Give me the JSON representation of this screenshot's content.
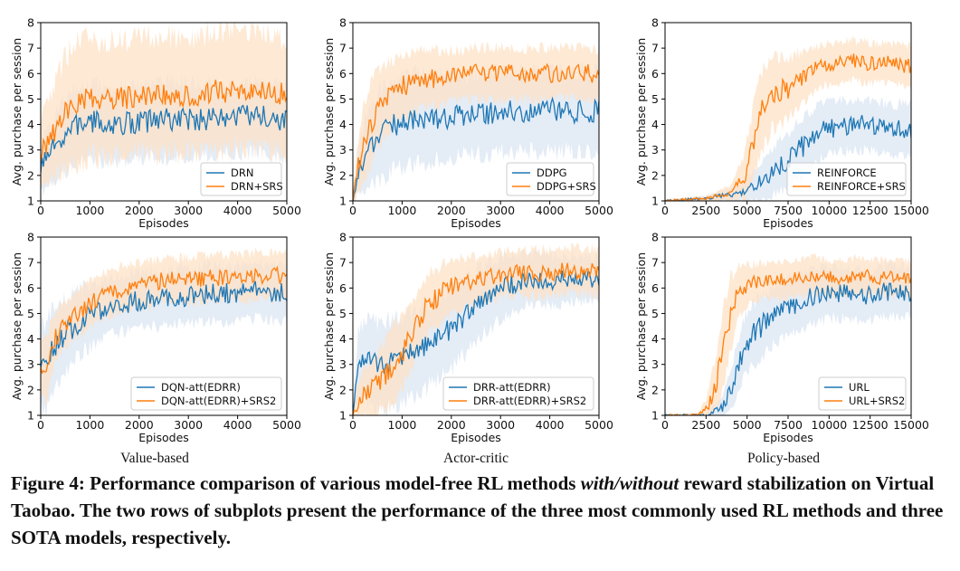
{
  "caption": {
    "prefix": "Figure 4: Performance comparison of various model-free RL methods ",
    "emphasis": "with/without",
    "suffix": " reward stabilization on Virtual Taobao. The two rows of subplots present the performance of the three most commonly used RL methods and three SOTA models, respectively."
  },
  "column_labels": [
    "Value-based",
    "Actor-critic",
    "Policy-based"
  ],
  "colors": {
    "blue": "#1f77b4",
    "orange": "#ff7f0e",
    "blue_band": "#dbe6f3",
    "orange_band": "#fde2c6"
  },
  "chart_data": [
    {
      "type": "line",
      "xlabel": "Episodes",
      "ylabel": "Avg. purchase per session",
      "xlim": [
        0,
        5000
      ],
      "ylim": [
        1,
        8
      ],
      "xticks": [
        0,
        1000,
        2000,
        3000,
        4000,
        5000
      ],
      "yticks": [
        1,
        2,
        3,
        4,
        5,
        6,
        7,
        8
      ],
      "legend": "lower-right",
      "series": [
        {
          "name": "DRN",
          "color": "#1f77b4",
          "x": [
            0,
            250,
            500,
            750,
            1000,
            1500,
            2000,
            2500,
            3000,
            3500,
            4000,
            4500,
            5000
          ],
          "y": [
            2.3,
            3.0,
            3.6,
            4.0,
            4.1,
            4.0,
            4.1,
            4.2,
            4.2,
            4.2,
            4.3,
            4.3,
            4.1
          ],
          "band": [
            1.0,
            1.2,
            1.4,
            1.5,
            1.5,
            1.4,
            1.4,
            1.5,
            1.5,
            1.4,
            1.4,
            1.4,
            1.4
          ]
        },
        {
          "name": "DRN+SRS",
          "color": "#ff7f0e",
          "x": [
            0,
            250,
            500,
            750,
            1000,
            1500,
            2000,
            2500,
            3000,
            3500,
            4000,
            4500,
            5000
          ],
          "y": [
            2.8,
            3.6,
            4.5,
            4.9,
            5.0,
            5.0,
            5.1,
            5.2,
            5.1,
            5.3,
            5.3,
            5.3,
            5.2
          ],
          "band": [
            1.3,
            1.8,
            2.2,
            2.3,
            2.3,
            2.2,
            2.2,
            2.3,
            2.2,
            2.3,
            2.3,
            2.3,
            2.2
          ]
        }
      ]
    },
    {
      "type": "line",
      "xlabel": "Episodes",
      "ylabel": "Avg. purchase per session",
      "xlim": [
        0,
        5000
      ],
      "ylim": [
        1,
        8
      ],
      "xticks": [
        0,
        1000,
        2000,
        3000,
        4000,
        5000
      ],
      "yticks": [
        1,
        2,
        3,
        4,
        5,
        6,
        7,
        8
      ],
      "legend": "lower-right",
      "series": [
        {
          "name": "DDPG",
          "color": "#1f77b4",
          "x": [
            0,
            100,
            250,
            500,
            750,
            1000,
            1500,
            2000,
            2500,
            3000,
            3500,
            4000,
            4500,
            5000
          ],
          "y": [
            1.0,
            2.0,
            2.9,
            3.5,
            3.9,
            4.1,
            4.2,
            4.3,
            4.4,
            4.5,
            4.5,
            4.6,
            4.5,
            4.5
          ],
          "band": [
            0.1,
            0.8,
            1.5,
            1.7,
            1.8,
            1.8,
            1.7,
            1.6,
            1.6,
            1.6,
            1.6,
            1.6,
            1.6,
            1.6
          ]
        },
        {
          "name": "DDPG+SRS",
          "color": "#ff7f0e",
          "x": [
            0,
            100,
            250,
            500,
            750,
            1000,
            1500,
            2000,
            2500,
            3000,
            3500,
            4000,
            4500,
            5000
          ],
          "y": [
            1.0,
            2.3,
            3.5,
            4.6,
            5.2,
            5.5,
            5.8,
            5.9,
            6.0,
            6.0,
            6.0,
            6.0,
            6.0,
            6.0
          ],
          "band": [
            0.1,
            1.0,
            1.5,
            1.5,
            1.3,
            1.2,
            1.1,
            1.0,
            1.0,
            1.0,
            1.0,
            1.0,
            1.0,
            1.0
          ]
        }
      ]
    },
    {
      "type": "line",
      "xlabel": "Episodes",
      "ylabel": "Avg. purchase per session",
      "xlim": [
        0,
        15000
      ],
      "ylim": [
        1,
        8
      ],
      "xticks": [
        0,
        2500,
        5000,
        7500,
        10000,
        12500,
        15000
      ],
      "yticks": [
        1,
        2,
        3,
        4,
        5,
        6,
        7,
        8
      ],
      "legend": "lower-right",
      "series": [
        {
          "name": "REINFORCE",
          "color": "#1f77b4",
          "x": [
            0,
            2500,
            4500,
            5500,
            6500,
            7500,
            8500,
            9500,
            10500,
            11500,
            12500,
            13500,
            15000
          ],
          "y": [
            1.0,
            1.1,
            1.3,
            1.6,
            2.1,
            2.6,
            3.2,
            3.7,
            3.9,
            4.0,
            4.0,
            3.8,
            3.8
          ],
          "band": [
            0.05,
            0.1,
            0.3,
            0.6,
            0.9,
            1.1,
            1.2,
            1.1,
            1.0,
            1.0,
            1.0,
            1.0,
            1.0
          ]
        },
        {
          "name": "REINFORCE+SRS",
          "color": "#ff7f0e",
          "x": [
            0,
            2500,
            4000,
            4800,
            5300,
            5800,
            6500,
            7500,
            8500,
            9500,
            10500,
            11500,
            12500,
            13500,
            15000
          ],
          "y": [
            1.0,
            1.1,
            1.3,
            1.9,
            3.0,
            4.4,
            5.2,
            5.4,
            5.9,
            6.3,
            6.4,
            6.5,
            6.4,
            6.4,
            6.3
          ],
          "band": [
            0.05,
            0.1,
            0.3,
            0.8,
            1.4,
            1.6,
            1.4,
            1.2,
            1.0,
            0.8,
            0.8,
            0.8,
            0.8,
            0.8,
            0.8
          ]
        }
      ]
    },
    {
      "type": "line",
      "xlabel": "Episodes",
      "ylabel": "Avg. purchase per session",
      "xlim": [
        0,
        5000
      ],
      "ylim": [
        1,
        8
      ],
      "xticks": [
        0,
        1000,
        2000,
        3000,
        4000,
        5000
      ],
      "yticks": [
        1,
        2,
        3,
        4,
        5,
        6,
        7,
        8
      ],
      "legend": "lower-right",
      "series": [
        {
          "name": "DQN-att(EDRR)",
          "color": "#1f77b4",
          "x": [
            0,
            100,
            250,
            500,
            750,
            1000,
            1500,
            2000,
            2500,
            3000,
            3500,
            4000,
            4500,
            5000
          ],
          "y": [
            3.0,
            2.9,
            3.6,
            4.2,
            4.6,
            4.9,
            5.3,
            5.5,
            5.6,
            5.7,
            5.8,
            5.8,
            5.9,
            5.8
          ],
          "band": [
            1.5,
            1.8,
            1.6,
            1.4,
            1.3,
            1.2,
            1.1,
            1.1,
            1.1,
            1.1,
            1.1,
            1.1,
            1.1,
            1.1
          ]
        },
        {
          "name": "DQN-att(EDRR)+SRS2",
          "color": "#ff7f0e",
          "x": [
            0,
            100,
            250,
            500,
            750,
            1000,
            1500,
            2000,
            2500,
            3000,
            3500,
            4000,
            4500,
            5000
          ],
          "y": [
            3.0,
            2.7,
            3.9,
            4.6,
            5.0,
            5.4,
            5.9,
            6.1,
            6.3,
            6.3,
            6.4,
            6.4,
            6.5,
            6.5
          ],
          "band": [
            1.0,
            1.2,
            1.0,
            0.9,
            0.9,
            0.9,
            0.9,
            0.9,
            0.9,
            0.9,
            0.9,
            0.9,
            0.9,
            0.9
          ]
        }
      ]
    },
    {
      "type": "line",
      "xlabel": "Episodes",
      "ylabel": "Avg. purchase per session",
      "xlim": [
        0,
        5000
      ],
      "ylim": [
        1,
        8
      ],
      "xticks": [
        0,
        1000,
        2000,
        3000,
        4000,
        5000
      ],
      "yticks": [
        1,
        2,
        3,
        4,
        5,
        6,
        7,
        8
      ],
      "legend": "lower-right",
      "series": [
        {
          "name": "DRR-att(EDRR)",
          "color": "#1f77b4",
          "x": [
            0,
            100,
            250,
            500,
            750,
            1000,
            1500,
            2000,
            2500,
            3000,
            3500,
            4000,
            4500,
            5000
          ],
          "y": [
            1.0,
            3.0,
            3.1,
            3.0,
            3.0,
            3.2,
            3.7,
            4.4,
            5.3,
            6.0,
            6.3,
            6.3,
            6.4,
            6.3
          ],
          "band": [
            0.1,
            1.3,
            1.6,
            1.7,
            1.7,
            1.7,
            1.6,
            1.6,
            1.4,
            1.2,
            1.0,
            1.0,
            0.9,
            0.9
          ]
        },
        {
          "name": "DRR-att(EDRR)+SRS2",
          "color": "#ff7f0e",
          "x": [
            0,
            100,
            250,
            500,
            750,
            1000,
            1250,
            1500,
            2000,
            2500,
            3000,
            3500,
            4000,
            4500,
            5000
          ],
          "y": [
            1.0,
            1.5,
            1.9,
            2.2,
            2.8,
            3.5,
            4.3,
            5.3,
            6.1,
            6.3,
            6.5,
            6.6,
            6.6,
            6.7,
            6.6
          ],
          "band": [
            0.1,
            0.8,
            1.0,
            1.2,
            1.4,
            1.5,
            1.4,
            1.2,
            1.0,
            0.9,
            0.9,
            0.9,
            0.9,
            0.9,
            0.9
          ]
        }
      ]
    },
    {
      "type": "line",
      "xlabel": "Episodes",
      "ylabel": "Avg. purchase per session",
      "xlim": [
        0,
        15000
      ],
      "ylim": [
        1,
        8
      ],
      "xticks": [
        0,
        2500,
        5000,
        7500,
        10000,
        12500,
        15000
      ],
      "yticks": [
        1,
        2,
        3,
        4,
        5,
        6,
        7,
        8
      ],
      "legend": "lower-right",
      "series": [
        {
          "name": "URL",
          "color": "#1f77b4",
          "x": [
            0,
            2500,
            3500,
            4000,
            4500,
            5000,
            6000,
            7000,
            8000,
            9000,
            10000,
            11000,
            12000,
            13000,
            14000,
            15000
          ],
          "y": [
            1.0,
            1.0,
            1.3,
            2.0,
            3.0,
            3.9,
            4.6,
            5.1,
            5.4,
            5.7,
            5.8,
            5.8,
            5.7,
            5.8,
            5.9,
            5.8
          ],
          "band": [
            0.05,
            0.1,
            0.4,
            0.8,
            1.1,
            1.2,
            1.2,
            1.1,
            1.1,
            1.1,
            1.0,
            1.0,
            1.0,
            1.0,
            1.0,
            1.0
          ]
        },
        {
          "name": "URL+SRS2",
          "color": "#ff7f0e",
          "x": [
            0,
            2000,
            2500,
            3000,
            3500,
            4000,
            4500,
            5000,
            6000,
            7000,
            8000,
            9000,
            10000,
            11000,
            12000,
            13000,
            14000,
            15000
          ],
          "y": [
            1.0,
            1.0,
            1.2,
            2.0,
            3.5,
            5.0,
            5.8,
            6.1,
            6.3,
            6.3,
            6.4,
            6.5,
            6.4,
            6.4,
            6.5,
            6.4,
            6.4,
            6.3
          ],
          "band": [
            0.05,
            0.1,
            0.4,
            1.0,
            1.5,
            1.4,
            1.0,
            0.8,
            0.7,
            0.7,
            0.7,
            0.7,
            0.7,
            0.7,
            0.7,
            0.7,
            0.7,
            0.7
          ]
        }
      ]
    }
  ]
}
